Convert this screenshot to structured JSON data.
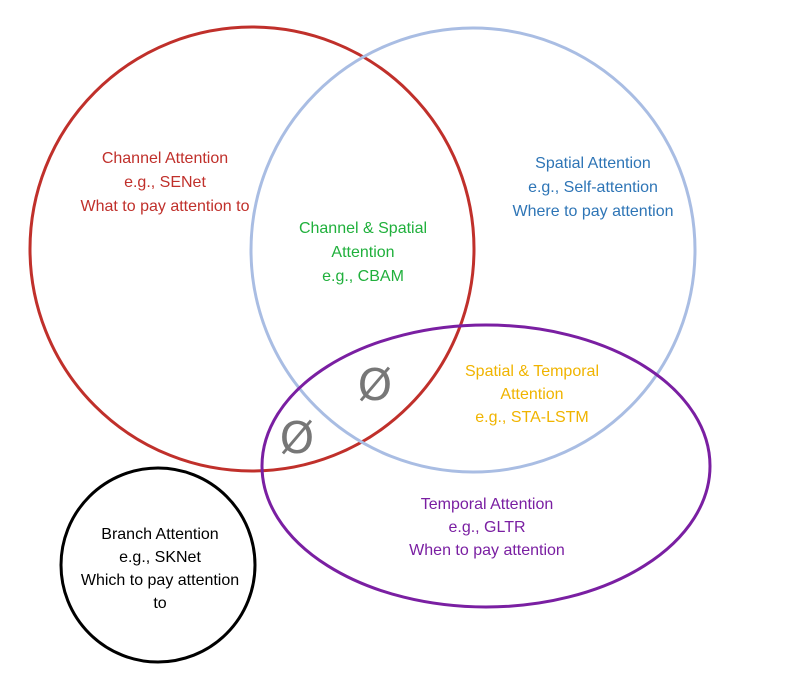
{
  "colors": {
    "channel": "#c0302b",
    "spatial": "#2e75b6",
    "spatial_ring": "#a9bde3",
    "channel_spatial": "#20b03c",
    "spatial_temporal": "#f0b400",
    "temporal": "#7a1fa2",
    "branch": "#000000",
    "empty_set": "#777777"
  },
  "regions": {
    "channel": {
      "name": "Channel Attention",
      "example": "e.g., SENet",
      "description": "What to pay attention to"
    },
    "spatial": {
      "name": "Spatial Attention",
      "example": "e.g., Self-attention",
      "description": "Where to pay attention"
    },
    "channel_spatial": {
      "name_line1": "Channel & Spatial",
      "name_line2": "Attention",
      "example": "e.g., CBAM"
    },
    "spatial_temporal": {
      "name_line1": "Spatial & Temporal",
      "name_line2": "Attention",
      "example": "e.g., STA-LSTM"
    },
    "temporal": {
      "name": "Temporal Attention",
      "example": "e.g., GLTR",
      "description": "When to pay attention"
    },
    "branch": {
      "name": "Branch Attention",
      "example": "e.g., SKNet",
      "description_line1": "Which to pay attention",
      "description_line2": "to"
    }
  },
  "empty_sets": {
    "all_three": "Ø",
    "channel_temporal": "Ø"
  }
}
